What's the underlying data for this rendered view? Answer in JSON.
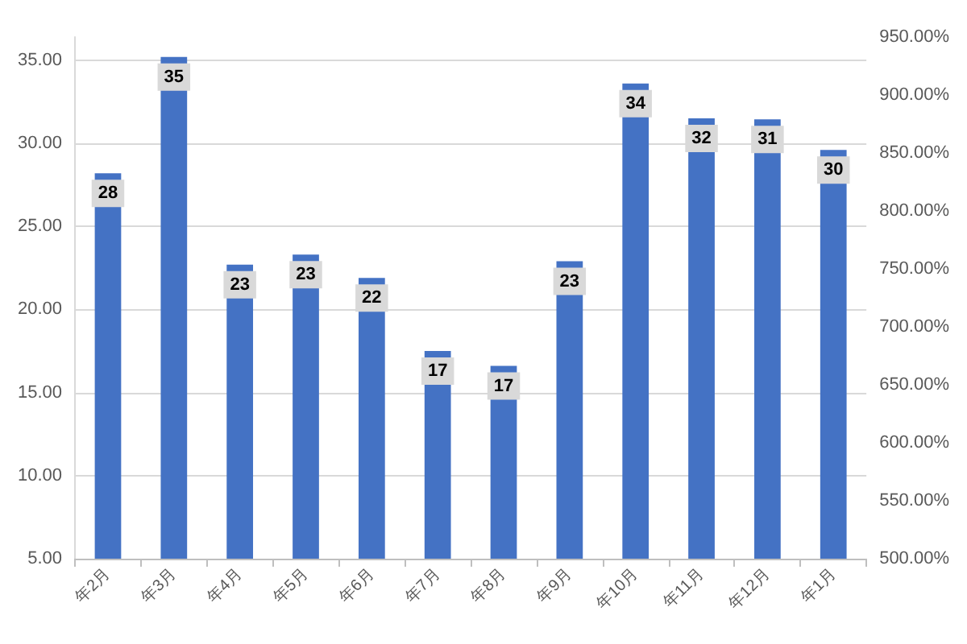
{
  "chart_data": {
    "type": "bar",
    "categories": [
      "年2月",
      "年3月",
      "年4月",
      "年5月",
      "年6月",
      "年7月",
      "年8月",
      "年9月",
      "年10月",
      "年11月",
      "年12月",
      "年1月"
    ],
    "series": [
      {
        "color": "#4472c4",
        "values": [
          28.2,
          35.2,
          22.7,
          23.3,
          21.9,
          17.5,
          16.6,
          22.9,
          33.6,
          31.5,
          31.45,
          29.6
        ],
        "value_labels": [
          "28",
          "35",
          "23",
          "23",
          "22",
          "17",
          "17",
          "23",
          "34",
          "32",
          "31",
          "30"
        ]
      }
    ],
    "ylim": [
      5,
      36.4
    ],
    "yticks": [
      {
        "value": 5,
        "label": "5.00"
      },
      {
        "value": 10,
        "label": "10.00"
      },
      {
        "value": 15,
        "label": "15.00"
      },
      {
        "value": 20,
        "label": "20.00"
      },
      {
        "value": 25,
        "label": "25.00"
      },
      {
        "value": 30,
        "label": "30.00"
      },
      {
        "value": 35,
        "label": "35.00"
      }
    ],
    "y2lim": [
      500,
      950
    ],
    "y2ticks": [
      {
        "value": 500,
        "label": "500.00%"
      },
      {
        "value": 550,
        "label": "550.00%"
      },
      {
        "value": 600,
        "label": "600.00%"
      },
      {
        "value": 650,
        "label": "650.00%"
      },
      {
        "value": 700,
        "label": "700.00%"
      },
      {
        "value": 750,
        "label": "750.00%"
      },
      {
        "value": 800,
        "label": "800.00%"
      },
      {
        "value": 850,
        "label": "850.00%"
      },
      {
        "value": 900,
        "label": "900.00%"
      },
      {
        "value": 950,
        "label": "950.00%"
      }
    ],
    "grid": "y"
  }
}
